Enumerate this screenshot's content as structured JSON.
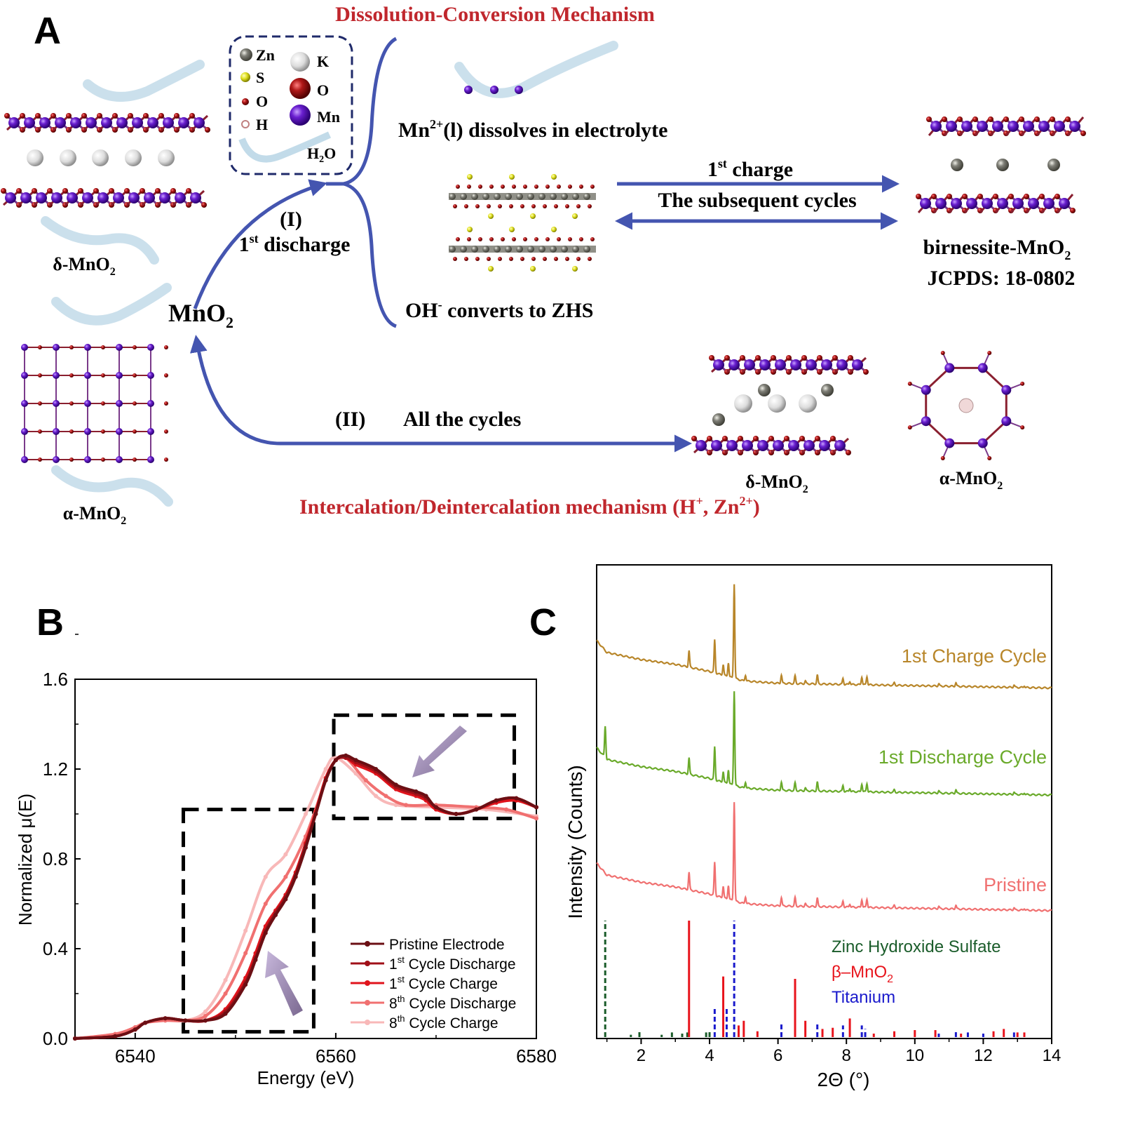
{
  "panel_labels": {
    "a": "A",
    "b": "B",
    "c": "C"
  },
  "colors": {
    "arrow_blue": "#4455b0",
    "title_red": "#c0272d",
    "mn_purple": "#6a1fd0",
    "o_red": "#b01818",
    "zn_grey": "#707068"
  },
  "panel_a": {
    "top_title": "Dissolution-Conversion Mechanism",
    "bottom_title": {
      "main": "Intercalation/Deintercalation mechanism (H",
      "sup1": "+",
      "mid": ", Zn",
      "sup2": "2+",
      "end": ")"
    },
    "legend": {
      "zn": "Zn",
      "s": "S",
      "o_small": "O",
      "h": "H",
      "k": "K",
      "o_large": "O",
      "mn": "Mn",
      "h2o": {
        "h": "H",
        "sub": "2",
        "o": "O"
      }
    },
    "dissolve_text": {
      "pre": "Mn",
      "sup": "2+",
      "post": "(l) dissolves in electrolyte"
    },
    "zhs_text": {
      "pre": "OH",
      "sup": "-",
      "post": " converts to ZHS"
    },
    "charge_label": {
      "pre": "1",
      "sup": "st",
      "post": " charge"
    },
    "subsequent_label": "The subsequent cycles",
    "birnessite": {
      "name": "birnessite-MnO",
      "sub": "2",
      "jcpds": "JCPDS: 18-0802"
    },
    "path_I": {
      "label": "(I)",
      "discharge": {
        "pre": "1",
        "sup": "st",
        "post": " discharge"
      }
    },
    "mno2": {
      "name": "MnO",
      "sub": "2"
    },
    "path_II": {
      "label": "(II)",
      "text": "All the cycles"
    },
    "delta_left": {
      "name": "δ-MnO",
      "sub": "2"
    },
    "alpha_left": {
      "name": "α-MnO",
      "sub": "2"
    },
    "delta_right": {
      "name": "δ-MnO",
      "sub": "2"
    },
    "alpha_right": {
      "name": "α-MnO",
      "sub": "2"
    }
  },
  "chart_data": [
    {
      "id": "B",
      "type": "line",
      "xlabel": "Energy (eV)",
      "ylabel": "Normalized μ(E)",
      "xlim": [
        6534,
        6580
      ],
      "ylim": [
        0.0,
        1.6
      ],
      "xticks": [
        "6540",
        "6560",
        "6580"
      ],
      "xtick_values": [
        6540,
        6560,
        6580
      ],
      "yticks": [
        "0.0",
        "0.4",
        "0.8",
        "1.2",
        "1.6"
      ],
      "ytick_values": [
        0.0,
        0.4,
        0.8,
        1.2,
        1.6
      ],
      "legend_position": "bottom-right",
      "series": [
        {
          "name": "Pristine Electrode",
          "label": {
            "pre": "Pristine Electrode",
            "sup": "",
            "post": ""
          },
          "color": "#6b0f14",
          "marker": "square",
          "x": [
            6534,
            6538,
            6540,
            6541,
            6543,
            6545,
            6547,
            6549,
            6551,
            6552,
            6553,
            6554,
            6555,
            6556,
            6557,
            6558,
            6559,
            6560,
            6561,
            6562,
            6564,
            6566,
            6568,
            6569,
            6570,
            6572,
            6574,
            6576,
            6578,
            6580
          ],
          "y": [
            0.0,
            0.01,
            0.04,
            0.07,
            0.09,
            0.08,
            0.08,
            0.11,
            0.24,
            0.35,
            0.47,
            0.55,
            0.62,
            0.72,
            0.85,
            1.0,
            1.15,
            1.24,
            1.26,
            1.24,
            1.2,
            1.13,
            1.1,
            1.08,
            1.03,
            1.0,
            1.02,
            1.06,
            1.07,
            1.03
          ]
        },
        {
          "name": "1st Cycle Discharge",
          "label": {
            "pre": "1",
            "sup": "st",
            "post": " Cycle Discharge"
          },
          "color": "#a01018",
          "marker": "diamond",
          "x": [
            6534,
            6538,
            6540,
            6541,
            6543,
            6545,
            6547,
            6549,
            6551,
            6552,
            6553,
            6554,
            6555,
            6556,
            6557,
            6558,
            6559,
            6560,
            6561,
            6562,
            6564,
            6566,
            6568,
            6569,
            6570,
            6572,
            6574,
            6576,
            6578,
            6580
          ],
          "y": [
            0.0,
            0.01,
            0.04,
            0.07,
            0.09,
            0.08,
            0.08,
            0.12,
            0.25,
            0.36,
            0.48,
            0.56,
            0.63,
            0.73,
            0.86,
            1.0,
            1.15,
            1.24,
            1.25,
            1.23,
            1.19,
            1.12,
            1.09,
            1.07,
            1.03,
            1.0,
            1.02,
            1.06,
            1.07,
            1.03
          ]
        },
        {
          "name": "1st Cycle Charge",
          "label": {
            "pre": "1",
            "sup": "st",
            "post": " Cycle Charge"
          },
          "color": "#e0141c",
          "marker": "triangle-up",
          "x": [
            6534,
            6538,
            6540,
            6541,
            6543,
            6545,
            6547,
            6549,
            6551,
            6552,
            6553,
            6554,
            6555,
            6556,
            6557,
            6558,
            6559,
            6560,
            6561,
            6562,
            6564,
            6566,
            6568,
            6569,
            6570,
            6572,
            6574,
            6576,
            6578,
            6580
          ],
          "y": [
            0.0,
            0.01,
            0.04,
            0.07,
            0.09,
            0.08,
            0.08,
            0.13,
            0.27,
            0.38,
            0.5,
            0.57,
            0.64,
            0.74,
            0.87,
            1.01,
            1.16,
            1.24,
            1.25,
            1.22,
            1.18,
            1.11,
            1.08,
            1.06,
            1.02,
            1.0,
            1.02,
            1.05,
            1.06,
            1.03
          ]
        },
        {
          "name": "8th Cycle Discharge",
          "label": {
            "pre": "8",
            "sup": "th",
            "post": " Cycle Discharge"
          },
          "color": "#f07070",
          "marker": "triangle-down",
          "x": [
            6534,
            6538,
            6540,
            6541,
            6543,
            6545,
            6547,
            6549,
            6551,
            6553,
            6555,
            6557,
            6559,
            6560,
            6561,
            6563,
            6565,
            6567,
            6570,
            6574,
            6577,
            6580
          ],
          "y": [
            0.0,
            0.02,
            0.05,
            0.07,
            0.08,
            0.08,
            0.1,
            0.2,
            0.38,
            0.6,
            0.72,
            0.9,
            1.15,
            1.24,
            1.25,
            1.15,
            1.08,
            1.04,
            1.04,
            1.03,
            1.02,
            0.98
          ]
        },
        {
          "name": "8th Cycle Charge",
          "label": {
            "pre": "8",
            "sup": "th",
            "post": " Cycle Charge"
          },
          "color": "#f8b8b8",
          "marker": "diamond",
          "x": [
            6534,
            6538,
            6540,
            6541,
            6543,
            6545,
            6547,
            6549,
            6551,
            6553,
            6555,
            6557,
            6559,
            6560,
            6562,
            6564,
            6566,
            6570,
            6575,
            6580
          ],
          "y": [
            0.0,
            0.02,
            0.05,
            0.07,
            0.08,
            0.08,
            0.12,
            0.26,
            0.48,
            0.72,
            0.82,
            1.0,
            1.2,
            1.25,
            1.18,
            1.08,
            1.04,
            1.03,
            1.02,
            0.99
          ]
        }
      ],
      "annotations": [
        "dashed box around pre-edge rise",
        "dashed box around post-edge region",
        "purple arrow pointing up",
        "purple arrow pointing down-left"
      ]
    },
    {
      "id": "C",
      "type": "line",
      "xlabel": "2Θ (°)",
      "ylabel": "Intensity (Counts)",
      "xlim": [
        0.7,
        14
      ],
      "xticks": [
        "2",
        "4",
        "6",
        "8",
        "10",
        "12",
        "14"
      ],
      "xtick_values": [
        2,
        4,
        6,
        8,
        10,
        12,
        14
      ],
      "ylim_au": [
        0,
        100
      ],
      "series": [
        {
          "name": "1st Charge Cycle",
          "color": "#b8862a",
          "offset": 47,
          "background": [
            [
              0.7,
              37
            ],
            [
              1,
              34.5
            ],
            [
              2,
              33
            ],
            [
              3,
              32
            ],
            [
              4,
              30.5
            ],
            [
              5,
              28.5
            ],
            [
              6,
              28
            ],
            [
              14,
              27
            ]
          ],
          "peaks": [
            [
              3.4,
              3.5
            ],
            [
              4.15,
              7
            ],
            [
              4.4,
              2.3
            ],
            [
              4.55,
              3
            ],
            [
              4.72,
              20
            ],
            [
              5.05,
              1.3
            ],
            [
              6.1,
              1.8
            ],
            [
              6.5,
              1.6
            ],
            [
              6.8,
              0.6
            ],
            [
              7.15,
              1.9
            ],
            [
              7.9,
              1.3
            ],
            [
              8.1,
              0.7
            ],
            [
              8.45,
              1.7
            ],
            [
              8.6,
              1.8
            ],
            [
              9.4,
              0.5
            ],
            [
              10.7,
              0.5
            ],
            [
              11.2,
              0.8
            ],
            [
              12.9,
              0.5
            ],
            [
              13.2,
              0.4
            ]
          ]
        },
        {
          "name": "1st Discharge Cycle",
          "color": "#6aaa2a",
          "offset": 24.4,
          "background": [
            [
              0.7,
              37
            ],
            [
              1,
              34.5
            ],
            [
              2,
              33
            ],
            [
              3,
              32
            ],
            [
              4,
              30.5
            ],
            [
              5,
              28.5
            ],
            [
              6,
              28
            ],
            [
              14,
              27
            ]
          ],
          "peaks": [
            [
              0.95,
              6.7
            ],
            [
              3.4,
              3.5
            ],
            [
              4.15,
              7
            ],
            [
              4.4,
              2.3
            ],
            [
              4.55,
              3
            ],
            [
              4.72,
              20
            ],
            [
              5.05,
              1.3
            ],
            [
              6.1,
              1.8
            ],
            [
              6.5,
              1.6
            ],
            [
              6.8,
              0.6
            ],
            [
              7.15,
              1.9
            ],
            [
              7.9,
              1.3
            ],
            [
              8.1,
              0.7
            ],
            [
              8.45,
              1.7
            ],
            [
              8.6,
              1.8
            ],
            [
              9.4,
              0.5
            ],
            [
              10.7,
              0.5
            ],
            [
              11.2,
              0.8
            ],
            [
              12.9,
              0.5
            ],
            [
              13.2,
              0.4
            ]
          ]
        },
        {
          "name": "Pristine",
          "color": "#f07070",
          "offset": 0,
          "background": [
            [
              0.7,
              37
            ],
            [
              1,
              34.5
            ],
            [
              2,
              33
            ],
            [
              3,
              32
            ],
            [
              4,
              30.5
            ],
            [
              5,
              28.5
            ],
            [
              6,
              28
            ],
            [
              14,
              27
            ]
          ],
          "peaks": [
            [
              3.4,
              3.7
            ],
            [
              4.15,
              7
            ],
            [
              4.4,
              2.5
            ],
            [
              4.55,
              3
            ],
            [
              4.72,
              21
            ],
            [
              5.05,
              1.5
            ],
            [
              6.1,
              1.8
            ],
            [
              6.5,
              1.8
            ],
            [
              6.8,
              0.6
            ],
            [
              7.15,
              1.8
            ],
            [
              7.9,
              1.3
            ],
            [
              8.1,
              0.7
            ],
            [
              8.45,
              1.7
            ],
            [
              8.6,
              1.8
            ],
            [
              9.4,
              0.5
            ],
            [
              10.7,
              0.5
            ],
            [
              11.2,
              0.8
            ],
            [
              12.9,
              0.5
            ],
            [
              13.2,
              0.4
            ]
          ]
        }
      ],
      "references": [
        {
          "name": "Zinc Hydroxide Sulfate",
          "color": "#1a5c2a",
          "style": "dashed",
          "sticks": [
            [
              0.95,
              1.0
            ],
            [
              1.7,
              0.02
            ],
            [
              1.95,
              0.05
            ],
            [
              2.6,
              0.02
            ],
            [
              2.9,
              0.04
            ],
            [
              3.2,
              0.03
            ],
            [
              3.35,
              0.04
            ],
            [
              3.9,
              0.04
            ],
            [
              4.0,
              0.05
            ]
          ]
        },
        {
          "name": "β–MnO2",
          "label": {
            "pre": "β–MnO",
            "sub": "2"
          },
          "color": "#e8141c",
          "style": "solid",
          "sticks": [
            [
              3.4,
              1.0
            ],
            [
              4.4,
              0.52
            ],
            [
              4.85,
              0.1
            ],
            [
              5.0,
              0.14
            ],
            [
              5.4,
              0.05
            ],
            [
              6.5,
              0.5
            ],
            [
              6.8,
              0.14
            ],
            [
              7.3,
              0.07
            ],
            [
              7.6,
              0.08
            ],
            [
              8.1,
              0.16
            ],
            [
              8.8,
              0.03
            ],
            [
              9.4,
              0.05
            ],
            [
              10.0,
              0.06
            ],
            [
              10.6,
              0.06
            ],
            [
              11.35,
              0.03
            ],
            [
              12.3,
              0.05
            ],
            [
              12.6,
              0.07
            ],
            [
              13.0,
              0.04
            ],
            [
              13.2,
              0.04
            ]
          ]
        },
        {
          "name": "Titanium",
          "color": "#1a1acc",
          "style": "dashed",
          "sticks": [
            [
              4.15,
              0.26
            ],
            [
              4.5,
              0.26
            ],
            [
              4.72,
              1.0
            ],
            [
              6.1,
              0.12
            ],
            [
              7.15,
              0.12
            ],
            [
              7.9,
              0.1
            ],
            [
              8.45,
              0.1
            ],
            [
              8.55,
              0.07
            ],
            [
              10.7,
              0.03
            ],
            [
              11.2,
              0.05
            ],
            [
              11.55,
              0.04
            ],
            [
              12.0,
              0.03
            ],
            [
              12.9,
              0.04
            ]
          ]
        }
      ]
    }
  ]
}
